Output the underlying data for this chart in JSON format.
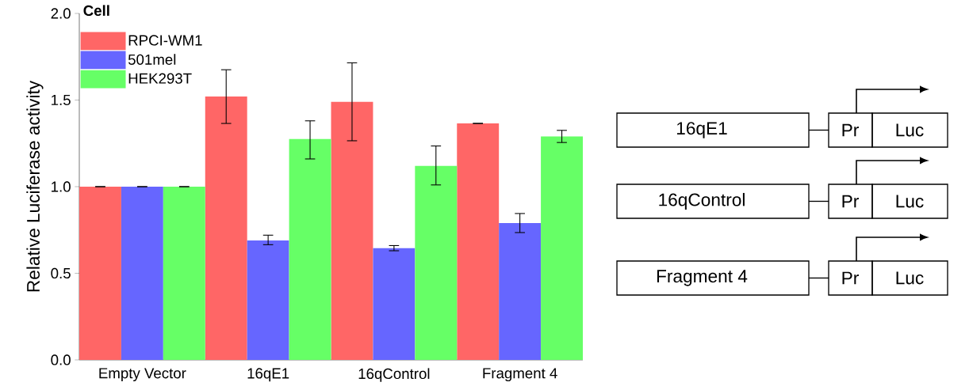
{
  "chart_data": [
    {
      "type": "bar",
      "ylabel": "Relative Luciferase activity",
      "legend_title": "Cell",
      "legend": "top left",
      "categories": [
        "Empty Vector",
        "16qE1",
        "16qControl",
        "Fragment 4"
      ],
      "ylim": [
        0,
        2
      ],
      "yticks": [
        {
          "value": 0,
          "label": "0.0"
        },
        {
          "value": 0.5,
          "label": "0.5"
        },
        {
          "value": 1,
          "label": "1.0"
        },
        {
          "value": 1.5,
          "label": "1.5"
        },
        {
          "value": 2,
          "label": "2.0"
        }
      ],
      "series": [
        {
          "name": "RPCI-WM1",
          "color": "#ff6666",
          "values": [
            1.0,
            1.52,
            1.49,
            1.365
          ],
          "errors": [
            0,
            [
              1.365,
              1.675
            ],
            [
              1.265,
              1.715
            ],
            0
          ]
        },
        {
          "name": "501mel",
          "color": "#6666ff",
          "values": [
            1.0,
            0.69,
            0.645,
            0.79
          ],
          "errors": [
            0,
            [
              0.665,
              0.72
            ],
            [
              0.63,
              0.66
            ],
            [
              0.735,
              0.845
            ]
          ]
        },
        {
          "name": "HEK293T",
          "color": "#66ff66",
          "values": [
            1.0,
            1.275,
            1.12,
            1.29
          ],
          "errors": [
            0,
            [
              1.16,
              1.38
            ],
            [
              1.01,
              1.235
            ],
            [
              1.255,
              1.325
            ]
          ]
        }
      ]
    },
    {
      "type": "other",
      "categories": [
        "16qE1",
        "16qControl",
        "Fragment 4"
      ],
      "annotations": [
        "Pr",
        "Luc"
      ]
    }
  ]
}
